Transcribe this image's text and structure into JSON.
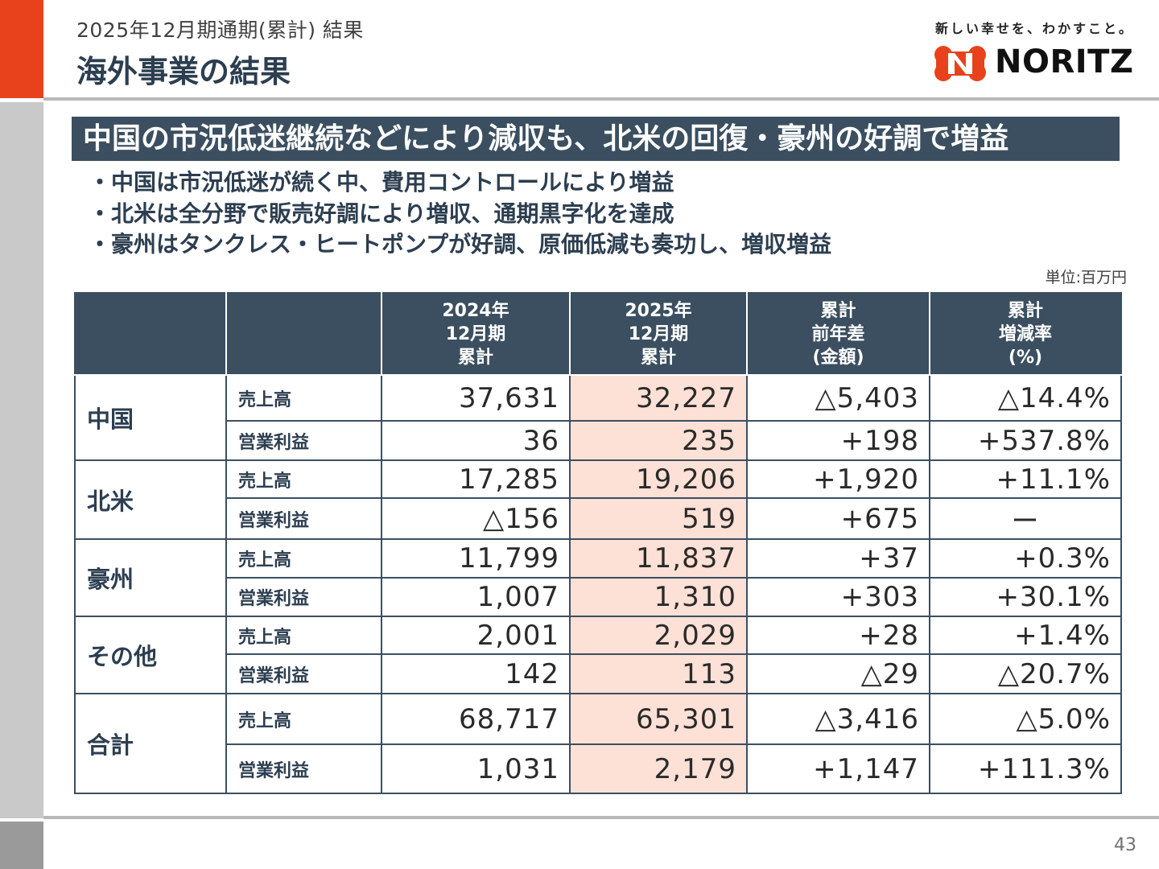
{
  "header": {
    "subtitle": "2025年12月期通期(累計) 結果",
    "title": "海外事業の結果"
  },
  "brand": {
    "tagline": "新しい幸せを、わかすこと。",
    "logo_text": "NORITZ",
    "accent_color": "#e8421c",
    "navy_color": "#3b4f60",
    "highlight_color": "#fde0d6"
  },
  "headline": "中国の市況低迷継続などにより減収も、北米の回復・豪州の好調で増益",
  "bullets": [
    "・中国は市況低迷が続く中、費用コントロールにより増益",
    "・北米は全分野で販売好調により増収、通期黒字化を達成",
    "・豪州はタンクレス・ヒートポンプが好調、原価低減も奏功し、増収増益"
  ],
  "unit": "単位:百万円",
  "table": {
    "columns": [
      "",
      "",
      "2024年\n12月期\n累計",
      "2025年\n12月期\n累計",
      "累計\n前年差\n(金額)",
      "累計\n増減率\n(%)"
    ],
    "regions": [
      {
        "name": "中国",
        "rows": [
          {
            "metric": "売上高",
            "fy2024": "37,631",
            "fy2025": "32,227",
            "diff": "△5,403",
            "rate": "△14.4%"
          },
          {
            "metric": "営業利益",
            "fy2024": "36",
            "fy2025": "235",
            "diff": "+198",
            "rate": "+537.8%"
          }
        ]
      },
      {
        "name": "北米",
        "rows": [
          {
            "metric": "売上高",
            "fy2024": "17,285",
            "fy2025": "19,206",
            "diff": "+1,920",
            "rate": "+11.1%"
          },
          {
            "metric": "営業利益",
            "fy2024": "△156",
            "fy2025": "519",
            "diff": "+675",
            "rate": "ー"
          }
        ]
      },
      {
        "name": "豪州",
        "rows": [
          {
            "metric": "売上高",
            "fy2024": "11,799",
            "fy2025": "11,837",
            "diff": "+37",
            "rate": "+0.3%"
          },
          {
            "metric": "営業利益",
            "fy2024": "1,007",
            "fy2025": "1,310",
            "diff": "+303",
            "rate": "+30.1%"
          }
        ]
      },
      {
        "name": "その他",
        "rows": [
          {
            "metric": "売上高",
            "fy2024": "2,001",
            "fy2025": "2,029",
            "diff": "+28",
            "rate": "+1.4%"
          },
          {
            "metric": "営業利益",
            "fy2024": "142",
            "fy2025": "113",
            "diff": "△29",
            "rate": "△20.7%"
          }
        ]
      },
      {
        "name": "合計",
        "rows": [
          {
            "metric": "売上高",
            "fy2024": "68,717",
            "fy2025": "65,301",
            "diff": "△3,416",
            "rate": "△5.0%"
          },
          {
            "metric": "営業利益",
            "fy2024": "1,031",
            "fy2025": "2,179",
            "diff": "+1,147",
            "rate": "+111.3%"
          }
        ]
      }
    ]
  },
  "page_number": "43"
}
